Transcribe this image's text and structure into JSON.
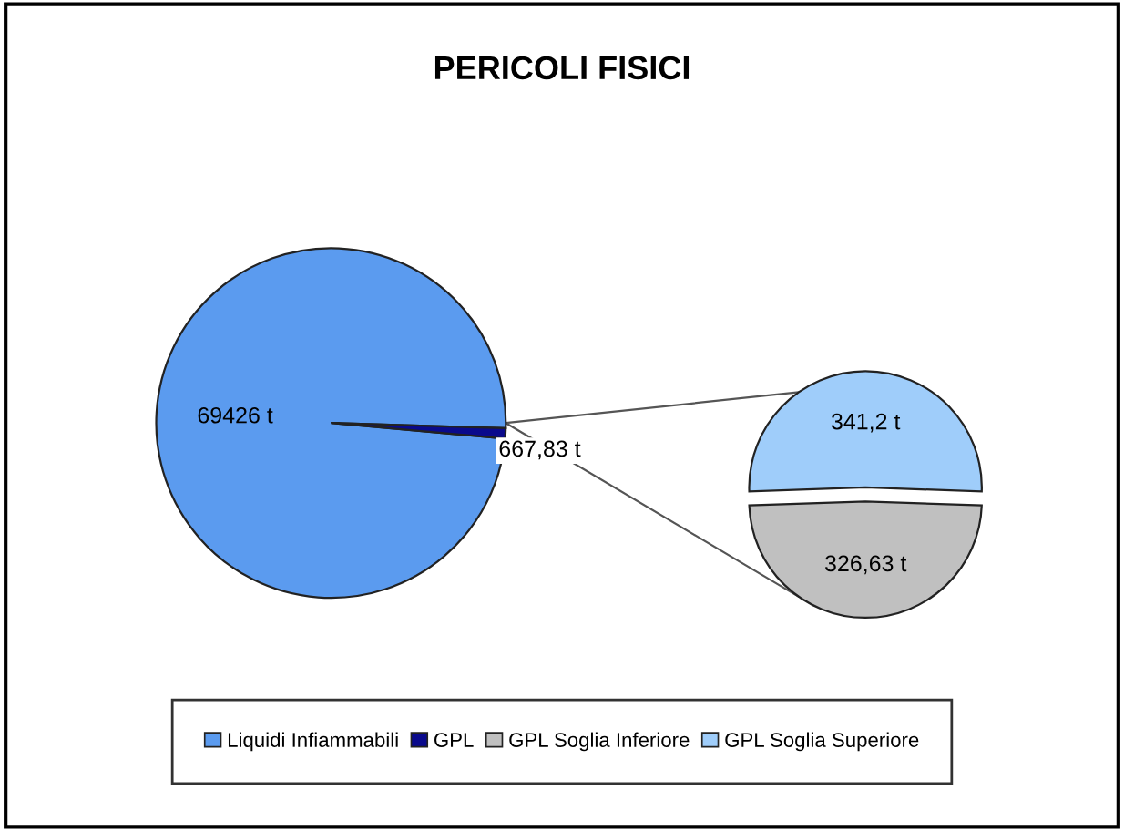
{
  "chart_data": [
    {
      "type": "pie",
      "title": "PERICOLI FISICI",
      "categories": [
        "Liquidi Infiammabili",
        "GPL"
      ],
      "values": [
        69426,
        667.83
      ],
      "value_labels": [
        "69426 t",
        "667,83 t"
      ],
      "colors": [
        "#5b9bef",
        "#0a0a8c"
      ],
      "legend": "bottom"
    },
    {
      "type": "pie",
      "categories": [
        "GPL Soglia Inferiore",
        "GPL Soglia Superiore"
      ],
      "values": [
        326.63,
        341.2
      ],
      "value_labels": [
        "326,63 t",
        "341,2 t"
      ],
      "colors": [
        "#c0c0c0",
        "#9fcdfa"
      ],
      "legend": "bottom"
    }
  ]
}
